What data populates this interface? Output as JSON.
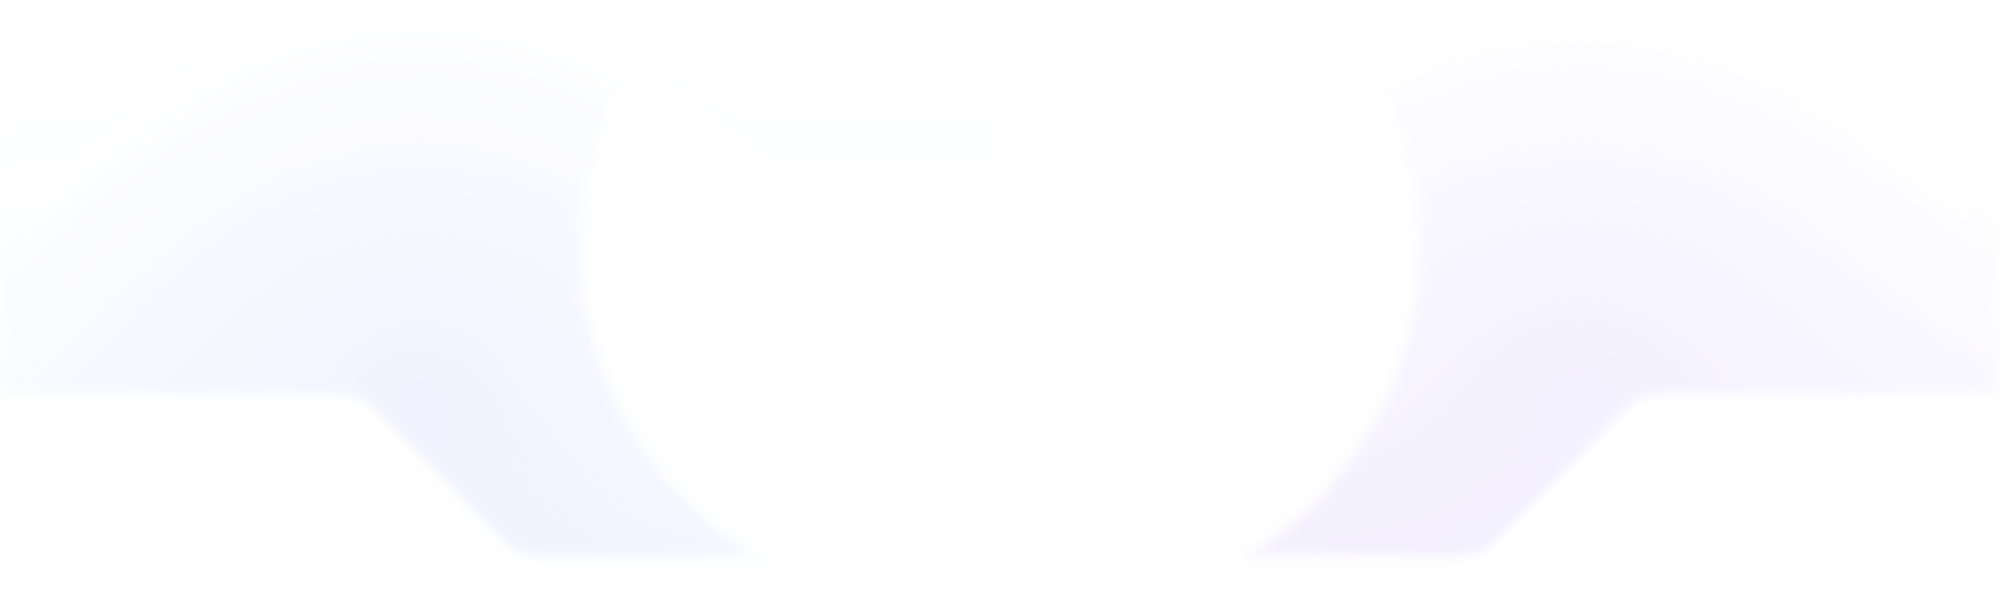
{
  "background": {
    "base_color": "#ffffff",
    "glow_left_color": "#eef0ff",
    "glow_right_color": "#f1eeff",
    "panel_tint_color": "#f3f6ff",
    "panel_tint_color_right": "#f4f1ff"
  }
}
